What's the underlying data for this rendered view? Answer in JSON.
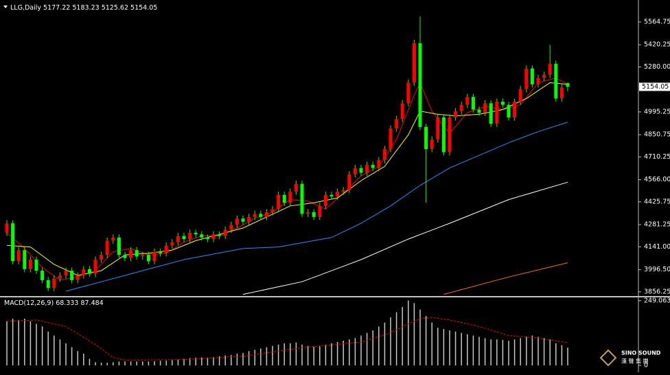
{
  "chart_data": [
    {
      "type": "candlestick",
      "title": "LLG,Daily",
      "up_color": "#ff0000",
      "down_color": "#00ff00",
      "wick_color": "#00ff00",
      "open": [
        4230,
        4290,
        4050,
        4120,
        4000,
        4060,
        3990,
        3930,
        3880,
        3940,
        3960,
        3990,
        3930,
        3960,
        4000,
        3970,
        4060,
        4090,
        4180,
        4200,
        4090,
        4070,
        4120,
        4080,
        4090,
        4050,
        4110,
        4100,
        4150,
        4170,
        4210,
        4190,
        4230,
        4220,
        4200,
        4190,
        4220,
        4210,
        4250,
        4280,
        4320,
        4300,
        4330,
        4350,
        4330,
        4360,
        4380,
        4470,
        4420,
        4490,
        4540,
        4350,
        4360,
        4330,
        4400,
        4470,
        4460,
        4490,
        4500,
        4600,
        4640,
        4610,
        4660,
        4640,
        4690,
        4760,
        4890,
        4950,
        5050,
        5180,
        5430,
        4900,
        4760,
        4820,
        4960,
        4740,
        4960,
        5000,
        5040,
        5090,
        5010,
        4990,
        5050,
        4920,
        5060,
        5040,
        4960,
        5060,
        5140,
        5270,
        5170,
        5210,
        5230,
        5300,
        5080,
        5177.22
      ],
      "high": [
        4310,
        4310,
        4140,
        4140,
        4080,
        4080,
        4010,
        3950,
        3960,
        3980,
        4010,
        4010,
        3980,
        4020,
        4020,
        4080,
        4110,
        4200,
        4220,
        4220,
        4110,
        4140,
        4140,
        4110,
        4110,
        4130,
        4130,
        4170,
        4190,
        4230,
        4230,
        4250,
        4250,
        4240,
        4220,
        4240,
        4240,
        4270,
        4300,
        4340,
        4340,
        4350,
        4370,
        4370,
        4380,
        4400,
        4490,
        4490,
        4510,
        4560,
        4560,
        4380,
        4380,
        4420,
        4490,
        4490,
        4510,
        4520,
        4620,
        4660,
        4660,
        4680,
        4680,
        4710,
        4780,
        4910,
        4970,
        5070,
        5200,
        5450,
        5600,
        4920,
        4840,
        4980,
        4980,
        4980,
        5020,
        5060,
        5110,
        5110,
        5030,
        5070,
        5070,
        5080,
        5080,
        5060,
        5080,
        5160,
        5290,
        5290,
        5230,
        5250,
        5420,
        5320,
        5170,
        5183.23
      ],
      "low": [
        4210,
        4030,
        4030,
        3980,
        3980,
        3970,
        3910,
        3860,
        3860,
        3920,
        3940,
        3910,
        3910,
        3940,
        3950,
        3950,
        4040,
        4070,
        4160,
        4070,
        4050,
        4050,
        4060,
        4060,
        4030,
        4030,
        4080,
        4080,
        4130,
        4150,
        4170,
        4170,
        4200,
        4180,
        4170,
        4170,
        4190,
        4190,
        4230,
        4260,
        4280,
        4280,
        4310,
        4310,
        4310,
        4340,
        4360,
        4400,
        4400,
        4470,
        4330,
        4330,
        4310,
        4310,
        4380,
        4440,
        4440,
        4470,
        4480,
        4580,
        4590,
        4590,
        4620,
        4620,
        4670,
        4740,
        4870,
        4930,
        5030,
        5160,
        4880,
        4420,
        4740,
        4800,
        4720,
        4720,
        4940,
        4980,
        5020,
        4990,
        4970,
        4970,
        4900,
        4900,
        5020,
        4940,
        4940,
        5040,
        5120,
        5150,
        5150,
        5190,
        5210,
        5060,
        5060,
        5125.62
      ],
      "close": [
        4290,
        4050,
        4120,
        4000,
        4060,
        3990,
        3930,
        3880,
        3940,
        3960,
        3990,
        3930,
        3960,
        4000,
        3970,
        4060,
        4090,
        4180,
        4200,
        4090,
        4070,
        4120,
        4080,
        4090,
        4050,
        4110,
        4100,
        4150,
        4170,
        4210,
        4190,
        4230,
        4220,
        4200,
        4190,
        4220,
        4210,
        4250,
        4280,
        4320,
        4300,
        4330,
        4350,
        4330,
        4360,
        4380,
        4470,
        4420,
        4490,
        4540,
        4350,
        4360,
        4330,
        4400,
        4470,
        4460,
        4490,
        4500,
        4600,
        4640,
        4610,
        4660,
        4640,
        4690,
        4760,
        4890,
        4950,
        5050,
        5180,
        5430,
        4900,
        4760,
        4820,
        4960,
        4740,
        4960,
        5000,
        5040,
        5090,
        5010,
        4990,
        5050,
        4920,
        5060,
        5040,
        4960,
        5060,
        5140,
        5270,
        5170,
        5210,
        5230,
        5300,
        5080,
        5150,
        5154.05
      ],
      "lines": [
        {
          "color": "#ff0000",
          "x": [
            0,
            3,
            6,
            9,
            12,
            15,
            18,
            21,
            24,
            27,
            30,
            33,
            36,
            39,
            42,
            45,
            48,
            51,
            54,
            57,
            60,
            63,
            66,
            69,
            70,
            72,
            75,
            78,
            81,
            84,
            87,
            90,
            93,
            95
          ],
          "values": [
            4230,
            4130,
            4010,
            3930,
            3950,
            3990,
            4110,
            4130,
            4090,
            4100,
            4170,
            4210,
            4210,
            4260,
            4320,
            4360,
            4440,
            4430,
            4380,
            4480,
            4590,
            4650,
            4820,
            5100,
            5180,
            5000,
            4860,
            4990,
            5030,
            5010,
            5040,
            5180,
            5210,
            5170
          ]
        },
        {
          "color": "#ffff00",
          "x": [
            0,
            4,
            8,
            12,
            16,
            20,
            24,
            28,
            32,
            36,
            40,
            44,
            48,
            52,
            56,
            60,
            64,
            68,
            70,
            73,
            76,
            80,
            84,
            88,
            92,
            95
          ],
          "values": [
            4150,
            4140,
            4030,
            3960,
            3990,
            4090,
            4100,
            4120,
            4180,
            4220,
            4260,
            4330,
            4400,
            4420,
            4450,
            4560,
            4650,
            4850,
            5000,
            4980,
            4970,
            4980,
            5010,
            5080,
            5180,
            5170
          ]
        },
        {
          "color": "#1e90ff",
          "x": [
            10,
            20,
            30,
            40,
            46,
            55,
            60,
            65,
            70,
            75,
            80,
            85,
            90,
            95
          ],
          "values": [
            3860,
            3960,
            4060,
            4130,
            4140,
            4200,
            4290,
            4400,
            4530,
            4640,
            4720,
            4800,
            4870,
            4930
          ]
        },
        {
          "color": "#ffffff",
          "x": [
            40,
            50,
            60,
            68,
            75,
            85,
            95
          ],
          "values": [
            3840,
            3920,
            4060,
            4190,
            4290,
            4440,
            4550
          ]
        },
        {
          "color": "#ff6a1a",
          "x": [
            74,
            85,
            95
          ],
          "values": [
            3840,
            3950,
            4040
          ]
        }
      ],
      "ylim": [
        3834,
        5682
      ],
      "yticks": [
        5564.75,
        5420.25,
        {
          "value": 5280,
          "label": "5280.00"
        },
        4995.25,
        4850.75,
        4710.25,
        {
          "value": 4566,
          "label": "4566.00"
        },
        4425.75,
        4281.25,
        {
          "value": 4141,
          "label": "4141.00"
        },
        {
          "value": 3996.5,
          "label": "3996.50"
        },
        3856.25
      ]
    },
    {
      "type": "bar",
      "title": "MACD(12,26,9)",
      "color": "#c8c8c8",
      "values": [
        170,
        180,
        175,
        180,
        170,
        160,
        150,
        130,
        115,
        100,
        85,
        70,
        55,
        45,
        25,
        12,
        10,
        10,
        12,
        15,
        15,
        15,
        15,
        15,
        15,
        16,
        18,
        18,
        20,
        22,
        25,
        28,
        30,
        30,
        30,
        32,
        35,
        38,
        40,
        45,
        48,
        55,
        60,
        65,
        70,
        75,
        80,
        85,
        85,
        88,
        80,
        75,
        72,
        75,
        80,
        85,
        90,
        95,
        100,
        105,
        115,
        125,
        135,
        150,
        165,
        185,
        205,
        225,
        250,
        240,
        215,
        190,
        165,
        145,
        140,
        135,
        130,
        125,
        120,
        115,
        110,
        105,
        100,
        100,
        98,
        95,
        100,
        105,
        110,
        115,
        110,
        105,
        100,
        85,
        78,
        68.333
      ],
      "signal": {
        "color": "#ff0000",
        "x": [
          0,
          5,
          10,
          15,
          18,
          20,
          30,
          40,
          50,
          60,
          65,
          68,
          70,
          72,
          75,
          80,
          85,
          90,
          95
        ],
        "values": [
          170,
          175,
          150,
          80,
          30,
          20,
          22,
          35,
          68,
          90,
          125,
          160,
          180,
          185,
          175,
          150,
          115,
          105,
          87.484
        ]
      },
      "ylim": [
        -16,
        262
      ],
      "yticks": [
        249.063,
        0
      ]
    }
  ],
  "logo": {
    "name": "SINO SOUND",
    "subtitle": "漢 聲 集 團"
  }
}
